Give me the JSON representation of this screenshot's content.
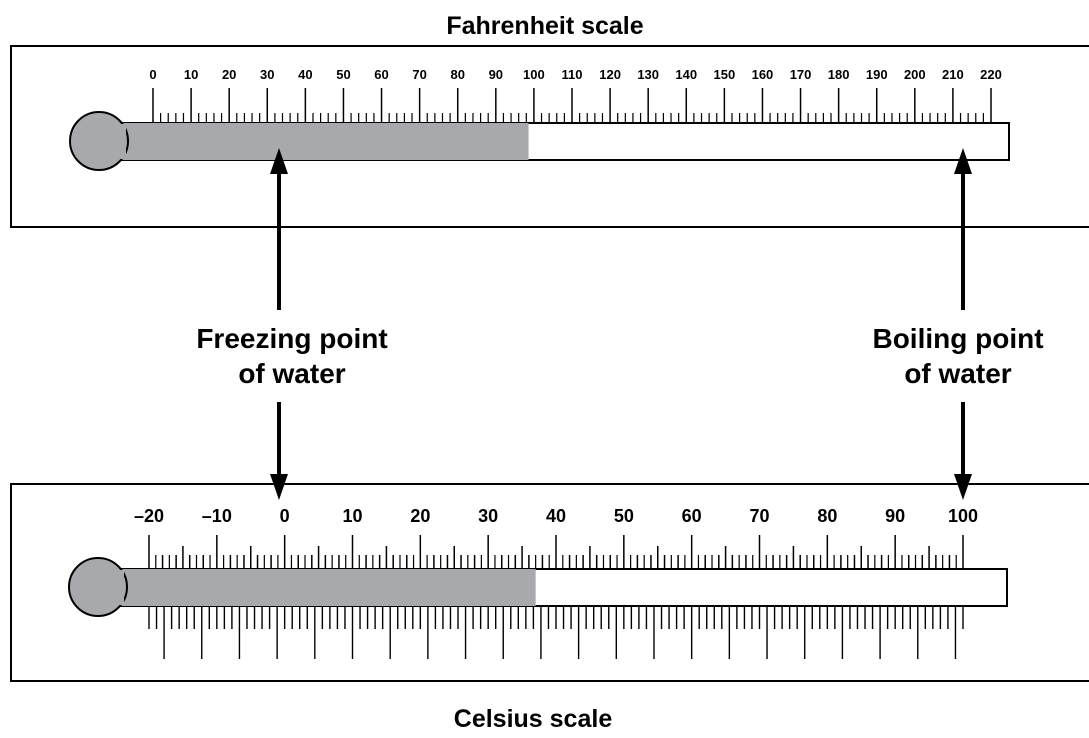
{
  "fahrenheit": {
    "title": "Fahrenheit scale",
    "labels": [
      "0",
      "10",
      "20",
      "30",
      "40",
      "50",
      "60",
      "70",
      "80",
      "90",
      "100",
      "110",
      "120",
      "130",
      "140",
      "150",
      "160",
      "170",
      "180",
      "190",
      "200",
      "210",
      "220"
    ],
    "min": 0,
    "max": 220,
    "liquid_level": 98.6
  },
  "celsius": {
    "title": "Celsius scale",
    "labels": [
      "–20",
      "–10",
      "0",
      "10",
      "20",
      "30",
      "40",
      "50",
      "60",
      "70",
      "80",
      "90",
      "100"
    ],
    "min": -20,
    "max": 100,
    "liquid_level": 37
  },
  "arrows": {
    "freezing": {
      "line1": "Freezing point",
      "line2": "of water",
      "fahrenheit_value": 32,
      "celsius_value": 0
    },
    "boiling": {
      "line1": "Boiling point",
      "line2": "of water",
      "fahrenheit_value": 212,
      "celsius_value": 100
    }
  },
  "colors": {
    "liquid": "#a7a9ac",
    "stroke": "#000000",
    "background": "#ffffff"
  }
}
